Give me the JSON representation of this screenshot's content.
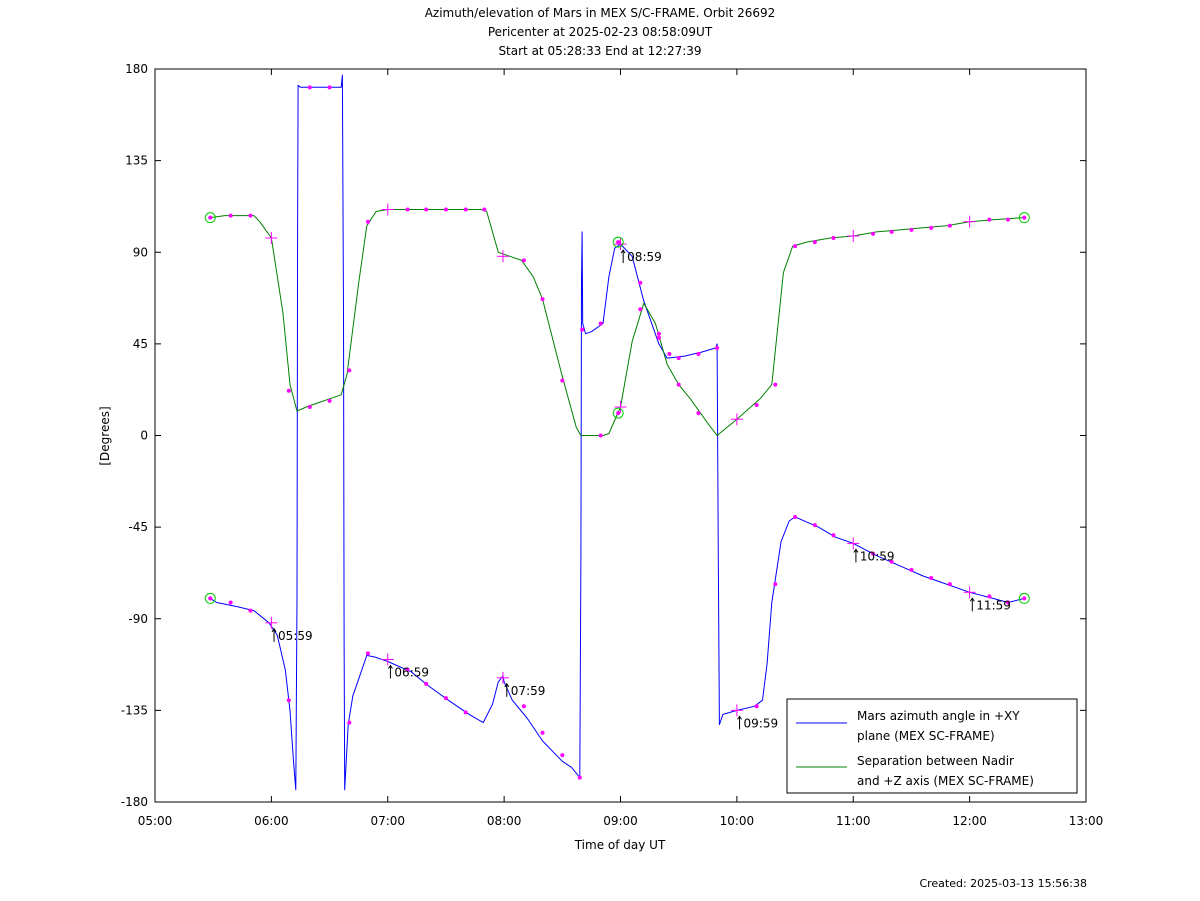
{
  "title_lines": [
    "Azimuth/elevation of Mars in MEX S/C-FRAME.  Orbit 26692",
    "Pericenter at 2025-02-23 08:58:09UT",
    "Start at 05:28:33 End at 12:27:39"
  ],
  "footer": {
    "created": "Created: 2025-03-13 15:56:38"
  },
  "chart_data": {
    "type": "line",
    "xlabel": "Time of day UT",
    "ylabel": "[Degrees]",
    "x_unit": "hours of day UT",
    "xlim": [
      5,
      13
    ],
    "ylim": [
      -180,
      180
    ],
    "x_ticks": [
      5,
      6,
      7,
      8,
      9,
      10,
      11,
      12,
      13
    ],
    "x_tick_labels": [
      "05:00",
      "06:00",
      "07:00",
      "08:00",
      "09:00",
      "10:00",
      "11:00",
      "12:00",
      "13:00"
    ],
    "y_ticks": [
      180,
      135,
      90,
      45,
      0,
      -45,
      -90,
      -135,
      -180
    ],
    "y_tick_labels": [
      "180",
      "135",
      "90",
      "45",
      "0",
      "-45",
      "-90",
      "-135",
      "-180"
    ],
    "legend_position": "bottom-right",
    "series": [
      {
        "name": "Mars azimuth angle in +XY plane (MEX SC-FRAME)",
        "legend_lines": [
          "Mars azimuth angle in +XY",
          "plane (MEX SC-FRAME)"
        ],
        "color": "#0000ff",
        "points": [
          [
            5.475,
            -80
          ],
          [
            5.53,
            -82
          ],
          [
            5.7,
            -84
          ],
          [
            5.85,
            -86
          ],
          [
            5.98,
            -92
          ],
          [
            6.05,
            -98
          ],
          [
            6.12,
            -115
          ],
          [
            6.16,
            -135
          ],
          [
            6.19,
            -160
          ],
          [
            6.21,
            -174
          ],
          [
            6.22,
            -80
          ],
          [
            6.225,
            100
          ],
          [
            6.23,
            172
          ],
          [
            6.25,
            171
          ],
          [
            6.333,
            171
          ],
          [
            6.5,
            171
          ],
          [
            6.6,
            171
          ],
          [
            6.61,
            177
          ],
          [
            6.62,
            60
          ],
          [
            6.625,
            -100
          ],
          [
            6.63,
            -174
          ],
          [
            6.66,
            -142
          ],
          [
            6.7,
            -128
          ],
          [
            6.76,
            -118
          ],
          [
            6.82,
            -108
          ],
          [
            6.9,
            -109
          ],
          [
            7.0,
            -111
          ],
          [
            7.2,
            -116
          ],
          [
            7.35,
            -123
          ],
          [
            7.52,
            -130
          ],
          [
            7.7,
            -137
          ],
          [
            7.82,
            -141
          ],
          [
            7.9,
            -132
          ],
          [
            7.95,
            -121
          ],
          [
            7.99,
            -118
          ],
          [
            8.0,
            -121
          ],
          [
            8.07,
            -130
          ],
          [
            8.2,
            -139
          ],
          [
            8.33,
            -150
          ],
          [
            8.5,
            -160
          ],
          [
            8.58,
            -163
          ],
          [
            8.65,
            -168
          ],
          [
            8.66,
            -60
          ],
          [
            8.665,
            75
          ],
          [
            8.67,
            100
          ],
          [
            8.675,
            55
          ],
          [
            8.7,
            50
          ],
          [
            8.75,
            51
          ],
          [
            8.85,
            55
          ],
          [
            8.9,
            78
          ],
          [
            8.95,
            92
          ],
          [
            9.0,
            94
          ],
          [
            9.1,
            88
          ],
          [
            9.2,
            66
          ],
          [
            9.33,
            45
          ],
          [
            9.4,
            38
          ],
          [
            9.55,
            39
          ],
          [
            9.7,
            41
          ],
          [
            9.82,
            43
          ],
          [
            9.83,
            45
          ],
          [
            9.84,
            -60
          ],
          [
            9.85,
            -142
          ],
          [
            9.88,
            -137
          ],
          [
            10.0,
            -135
          ],
          [
            10.15,
            -133
          ],
          [
            10.22,
            -130
          ],
          [
            10.26,
            -112
          ],
          [
            10.3,
            -82
          ],
          [
            10.38,
            -52
          ],
          [
            10.45,
            -42
          ],
          [
            10.5,
            -40
          ],
          [
            10.7,
            -45
          ],
          [
            10.85,
            -50
          ],
          [
            11.0,
            -53
          ],
          [
            11.2,
            -59
          ],
          [
            11.4,
            -64
          ],
          [
            11.6,
            -69
          ],
          [
            11.8,
            -73
          ],
          [
            12.0,
            -77
          ],
          [
            12.2,
            -80
          ],
          [
            12.33,
            -82
          ],
          [
            12.47,
            -80
          ]
        ]
      },
      {
        "name": "Separation between Nadir and +Z axis (MEX SC-FRAME)",
        "legend_lines": [
          "Separation between Nadir",
          "and +Z axis (MEX SC-FRAME)"
        ],
        "color": "#008000",
        "points": [
          [
            5.475,
            107
          ],
          [
            5.6,
            108
          ],
          [
            5.75,
            108
          ],
          [
            5.85,
            108
          ],
          [
            5.9,
            105
          ],
          [
            6.0,
            97
          ],
          [
            6.1,
            60
          ],
          [
            6.16,
            25
          ],
          [
            6.22,
            12
          ],
          [
            6.3,
            14
          ],
          [
            6.4,
            16
          ],
          [
            6.5,
            18
          ],
          [
            6.6,
            20
          ],
          [
            6.65,
            30
          ],
          [
            6.75,
            75
          ],
          [
            6.82,
            103
          ],
          [
            6.9,
            110
          ],
          [
            7.0,
            111
          ],
          [
            7.2,
            111
          ],
          [
            7.5,
            111
          ],
          [
            7.8,
            111
          ],
          [
            7.85,
            110
          ],
          [
            7.95,
            90
          ],
          [
            8.05,
            88
          ],
          [
            8.15,
            86
          ],
          [
            8.25,
            78
          ],
          [
            8.33,
            67
          ],
          [
            8.5,
            29
          ],
          [
            8.62,
            4
          ],
          [
            8.66,
            0
          ],
          [
            8.7,
            0
          ],
          [
            8.85,
            0
          ],
          [
            8.9,
            1
          ],
          [
            9.0,
            14
          ],
          [
            9.1,
            46
          ],
          [
            9.2,
            65
          ],
          [
            9.3,
            55
          ],
          [
            9.4,
            35
          ],
          [
            9.5,
            25
          ],
          [
            9.6,
            18
          ],
          [
            9.75,
            6
          ],
          [
            9.83,
            0
          ],
          [
            10.0,
            8
          ],
          [
            10.2,
            18
          ],
          [
            10.3,
            25
          ],
          [
            10.4,
            80
          ],
          [
            10.48,
            93
          ],
          [
            10.6,
            95
          ],
          [
            10.8,
            97
          ],
          [
            11.0,
            98
          ],
          [
            11.2,
            100
          ],
          [
            11.4,
            101
          ],
          [
            11.6,
            102
          ],
          [
            11.8,
            103
          ],
          [
            12.0,
            105
          ],
          [
            12.2,
            106
          ],
          [
            12.47,
            107
          ]
        ]
      }
    ],
    "circle_markers": [
      [
        5.475,
        107
      ],
      [
        5.475,
        -80
      ],
      [
        8.98,
        95
      ],
      [
        8.98,
        11
      ],
      [
        12.47,
        107
      ],
      [
        12.47,
        -80
      ]
    ],
    "plus_markers": [
      [
        6.0,
        97
      ],
      [
        6.0,
        -92
      ],
      [
        7.0,
        111
      ],
      [
        7.0,
        -110
      ],
      [
        7.99,
        88
      ],
      [
        7.99,
        -119
      ],
      [
        9.0,
        14
      ],
      [
        9.0,
        94
      ],
      [
        10.0,
        8
      ],
      [
        10.0,
        -135
      ],
      [
        11.0,
        -53
      ],
      [
        11.0,
        98
      ],
      [
        12.0,
        -77
      ],
      [
        12.0,
        105
      ]
    ],
    "dot_markers_azimuth": [
      [
        5.475,
        -80
      ],
      [
        5.65,
        -82
      ],
      [
        5.82,
        -86
      ],
      [
        6.15,
        -130
      ],
      [
        6.33,
        171
      ],
      [
        6.5,
        171
      ],
      [
        6.67,
        -141
      ],
      [
        6.83,
        -107
      ],
      [
        7.17,
        -115
      ],
      [
        7.33,
        -122
      ],
      [
        7.5,
        -129
      ],
      [
        7.67,
        -136
      ],
      [
        8.17,
        -133
      ],
      [
        8.33,
        -146
      ],
      [
        8.5,
        -157
      ],
      [
        8.65,
        -168
      ],
      [
        8.83,
        55
      ],
      [
        8.67,
        52
      ],
      [
        9.17,
        75
      ],
      [
        9.33,
        50
      ],
      [
        9.42,
        40
      ],
      [
        9.5,
        38
      ],
      [
        9.67,
        40
      ],
      [
        9.83,
        43
      ],
      [
        10.17,
        -133
      ],
      [
        10.33,
        -73
      ],
      [
        10.5,
        -40
      ],
      [
        10.67,
        -44
      ],
      [
        10.83,
        -49
      ],
      [
        11.17,
        -58
      ],
      [
        11.33,
        -62
      ],
      [
        11.5,
        -66
      ],
      [
        11.67,
        -70
      ],
      [
        11.83,
        -73
      ],
      [
        12.17,
        -79
      ],
      [
        12.33,
        -82
      ]
    ],
    "dot_markers_separation": [
      [
        5.65,
        108
      ],
      [
        5.82,
        108
      ],
      [
        6.15,
        22
      ],
      [
        6.33,
        14
      ],
      [
        6.5,
        17
      ],
      [
        6.67,
        32
      ],
      [
        6.83,
        105
      ],
      [
        7.17,
        111
      ],
      [
        7.33,
        111
      ],
      [
        7.5,
        111
      ],
      [
        7.67,
        111
      ],
      [
        7.83,
        111
      ],
      [
        8.17,
        86
      ],
      [
        8.33,
        67
      ],
      [
        8.5,
        27
      ],
      [
        8.83,
        0
      ],
      [
        9.17,
        62
      ],
      [
        9.33,
        48
      ],
      [
        9.5,
        25
      ],
      [
        9.67,
        11
      ],
      [
        10.17,
        15
      ],
      [
        10.33,
        25
      ],
      [
        10.5,
        93
      ],
      [
        10.67,
        95
      ],
      [
        10.83,
        97
      ],
      [
        11.17,
        99
      ],
      [
        11.33,
        100
      ],
      [
        11.5,
        101
      ],
      [
        11.67,
        102
      ],
      [
        11.83,
        103
      ],
      [
        12.17,
        106
      ],
      [
        12.33,
        106
      ]
    ],
    "annotations": [
      {
        "label": "05:59",
        "x": 5.98,
        "y": -92
      },
      {
        "label": "06:59",
        "x": 6.98,
        "y": -110
      },
      {
        "label": "07:59",
        "x": 7.98,
        "y": -119
      },
      {
        "label": "08:59",
        "x": 8.98,
        "y": 94
      },
      {
        "label": "09:59",
        "x": 9.98,
        "y": -135
      },
      {
        "label": "10:59",
        "x": 10.98,
        "y": -53
      },
      {
        "label": "11:59",
        "x": 11.98,
        "y": -77
      }
    ]
  }
}
